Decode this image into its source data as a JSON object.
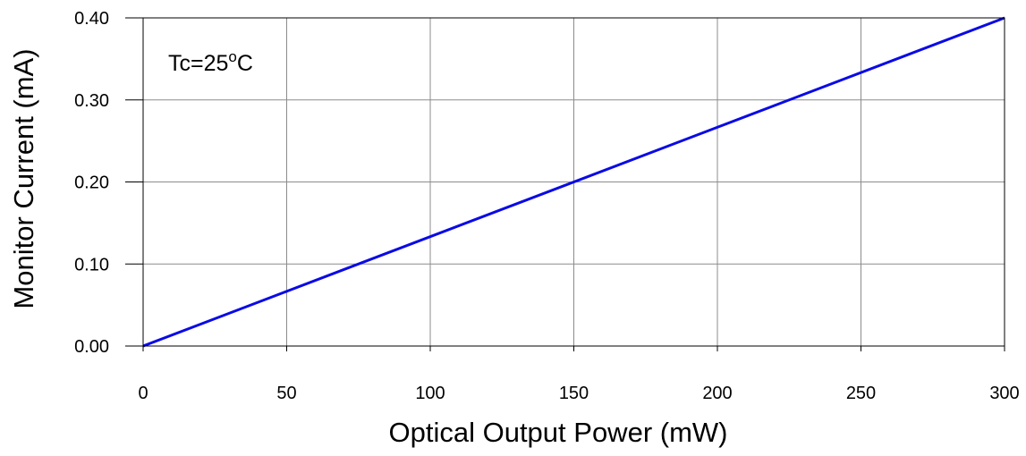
{
  "chart_data": {
    "type": "line",
    "xlabel": "Optical Output Power (mW)",
    "ylabel": "Monitor Current (mA)",
    "xlim": [
      0,
      300
    ],
    "ylim": [
      0,
      0.4
    ],
    "x_ticks": [
      "0",
      "50",
      "100",
      "150",
      "200",
      "250",
      "300"
    ],
    "y_ticks": [
      "0.00",
      "0.10",
      "0.20",
      "0.30",
      "0.40"
    ],
    "grid": true,
    "annotation": {
      "prefix": "Tc=25",
      "superscript": "o",
      "suffix": "C"
    },
    "series": [
      {
        "color": "#0a0ae6",
        "x": [
          0,
          300
        ],
        "y": [
          0.0,
          0.4
        ]
      }
    ]
  }
}
